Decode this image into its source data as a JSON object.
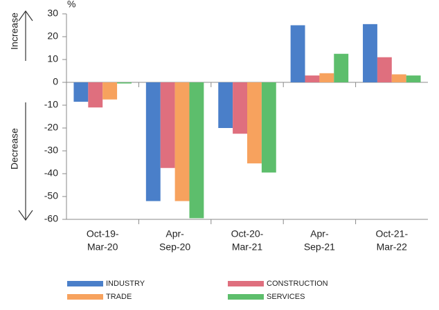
{
  "chart_data": {
    "type": "bar",
    "unit": "%",
    "increase_label": "Increase",
    "decrease_label": "Decrease",
    "categories": [
      [
        "Oct-19-",
        "Mar-20"
      ],
      [
        "Apr-",
        "Sep-20"
      ],
      [
        "Oct-20-",
        "Mar-21"
      ],
      [
        "Apr-",
        "Sep-21"
      ],
      [
        "Oct-21-",
        "Mar-22"
      ]
    ],
    "series": [
      {
        "name": "INDUSTRY",
        "color": "#4a7fc9",
        "values": [
          -8.5,
          -52,
          -20,
          25,
          25.5
        ]
      },
      {
        "name": "CONSTRUCTION",
        "color": "#df6f7e",
        "values": [
          -11,
          -37.5,
          -22.5,
          3,
          11
        ]
      },
      {
        "name": "TRADE",
        "color": "#f7a25e",
        "values": [
          -7.5,
          -52,
          -35.5,
          4,
          3.5
        ]
      },
      {
        "name": "SERVICES",
        "color": "#5dbe6c",
        "values": [
          -0.5,
          -59.5,
          -39.5,
          12.5,
          3
        ]
      }
    ],
    "ylim": [
      -60,
      30
    ],
    "yticks": [
      -60,
      -50,
      -40,
      -30,
      -20,
      -10,
      0,
      10,
      20,
      30
    ]
  }
}
